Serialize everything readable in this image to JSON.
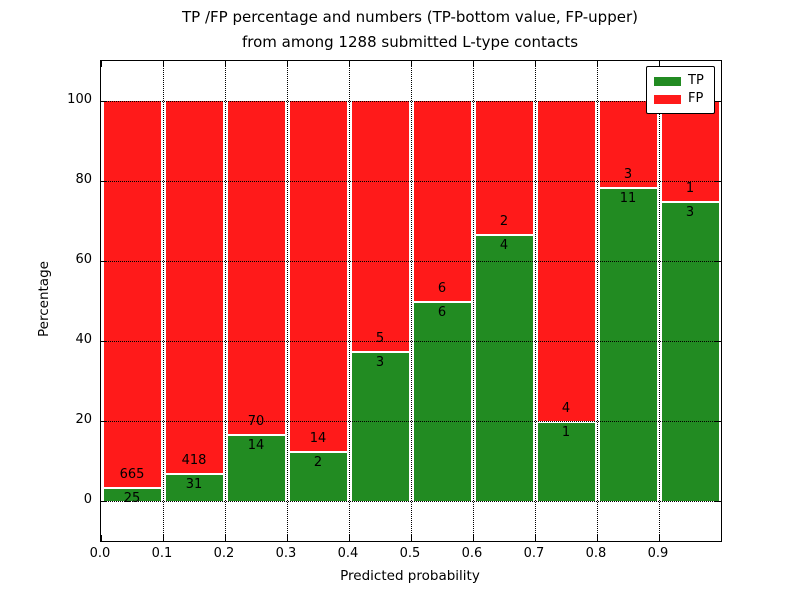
{
  "chart_data": {
    "type": "bar",
    "stacked": true,
    "unit": "percent",
    "title_line1": "TP /FP percentage and numbers (TP-bottom value, FP-upper)",
    "title_line2": "from among 1288 submitted L-type contacts",
    "xlabel": "Predicted probability",
    "ylabel": "Percentage",
    "total_contacts": 1288,
    "bin_width": 0.1,
    "categories": [
      "0.0",
      "0.1",
      "0.2",
      "0.3",
      "0.4",
      "0.5",
      "0.6",
      "0.7",
      "0.8",
      "0.9"
    ],
    "series": [
      {
        "name": "TP",
        "color": "#228b22",
        "counts": [
          25,
          31,
          14,
          2,
          3,
          6,
          4,
          1,
          11,
          3
        ]
      },
      {
        "name": "FP",
        "color": "#ff1a1a",
        "counts": [
          665,
          418,
          70,
          14,
          5,
          6,
          2,
          4,
          3,
          1
        ]
      }
    ],
    "tp_percent": [
      3.6,
      6.9,
      16.7,
      12.5,
      37.5,
      50.0,
      66.7,
      20.0,
      78.6,
      75.0
    ],
    "xticks": [
      "0.0",
      "0.1",
      "0.2",
      "0.3",
      "0.4",
      "0.5",
      "0.6",
      "0.7",
      "0.8",
      "0.9"
    ],
    "yticks": [
      0,
      20,
      40,
      60,
      80,
      100
    ],
    "xlim": [
      0.0,
      1.0
    ],
    "ylim": [
      -10,
      110
    ],
    "grid": "dotted",
    "legend": {
      "position": "upper-right",
      "entries": [
        "TP",
        "FP"
      ]
    }
  }
}
